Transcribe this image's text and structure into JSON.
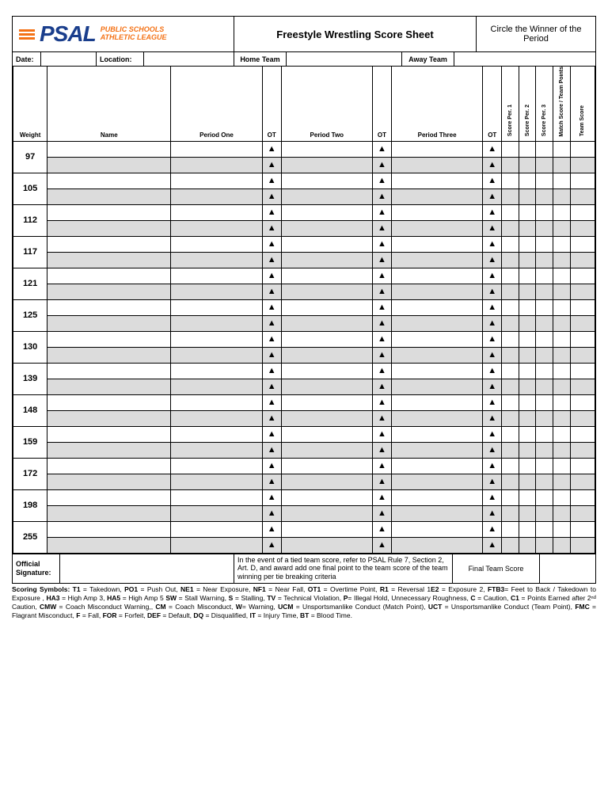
{
  "logo": {
    "main": "PSAL",
    "sub1": "PUBLIC SCHOOLS",
    "sub2": "ATHLETIC LEAGUE"
  },
  "title": "Freestyle Wrestling Score Sheet",
  "circle_winner": "Circle the Winner of the Period",
  "info": {
    "date": "Date:",
    "location": "Location:",
    "home": "Home Team",
    "away": "Away Team"
  },
  "cols": {
    "weight": "Weight",
    "name": "Name",
    "p1": "Period One",
    "ot": "OT",
    "p2": "Period Two",
    "p3": "Period Three",
    "sp1": "Score Per. 1",
    "sp2": "Score Per. 2",
    "sp3": "Score Per. 3",
    "ms": "Match Score / Team Points",
    "ts": "Team Score"
  },
  "colwidths": {
    "weight": 36,
    "name": 130,
    "period": 96,
    "ot": 20,
    "score": 18,
    "team": 26
  },
  "weights": [
    "97",
    "105",
    "112",
    "117",
    "121",
    "125",
    "130",
    "139",
    "148",
    "159",
    "172",
    "198",
    "255"
  ],
  "triangle": "▲",
  "footer": {
    "sig1": "Official",
    "sig2": "Signature:",
    "tie": "In the event of a tied team score, refer to PSAL Rule 7, Section 2, Art. D, and award add one final point to the team score of the team winning per tie breaking criteria",
    "fts": "Final Team Score"
  },
  "legend_parts": [
    [
      "Scoring Symbols: ",
      ""
    ],
    [
      "T1",
      " = Takedown, "
    ],
    [
      "PO1",
      " = Push Out, "
    ],
    [
      "NE1",
      " = Near Exposure, "
    ],
    [
      "NF1",
      " = Near Fall, "
    ],
    [
      "OT1",
      " = Overtime Point, "
    ],
    [
      "R1",
      " = Reversal 1"
    ],
    [
      "E2",
      " = Exposure 2, "
    ],
    [
      "FTB3",
      "= Feet to Back / Takedown to Exposure , "
    ],
    [
      "HA3",
      " = High Amp 3, "
    ],
    [
      "HA5",
      " = High Amp 5 "
    ],
    [
      "SW",
      " = Stall Warning, "
    ],
    [
      "S",
      " = Stalling, "
    ],
    [
      "TV",
      " = Technical Violation, "
    ],
    [
      "P",
      "= Illegal Hold, Unnecessary Roughness, "
    ],
    [
      "C",
      " = Caution, "
    ],
    [
      "C1",
      " = Points Earned after 2ⁿᵈ Caution, "
    ],
    [
      "CMW",
      " = Coach Misconduct Warning,, "
    ],
    [
      "CM",
      " = Coach Misconduct, "
    ],
    [
      "W",
      "= Warning, "
    ],
    [
      "UCM",
      " = Unsportsmanlike Conduct (Match Point), "
    ],
    [
      "UCT",
      " = Unsportsmanlike Conduct (Team Point), "
    ],
    [
      "FMC",
      " = Flagrant Misconduct, "
    ],
    [
      "F",
      " = Fall, "
    ],
    [
      "FOR",
      " = Forfeit, "
    ],
    [
      "DEF",
      " = Default, "
    ],
    [
      "DQ",
      " = Disqualified, "
    ],
    [
      "IT",
      " = Injury Time, "
    ],
    [
      "BT",
      " = Blood Time."
    ]
  ],
  "colors": {
    "orange": "#f47216",
    "blue": "#1a3e8c",
    "gray": "#dcdcdc"
  }
}
